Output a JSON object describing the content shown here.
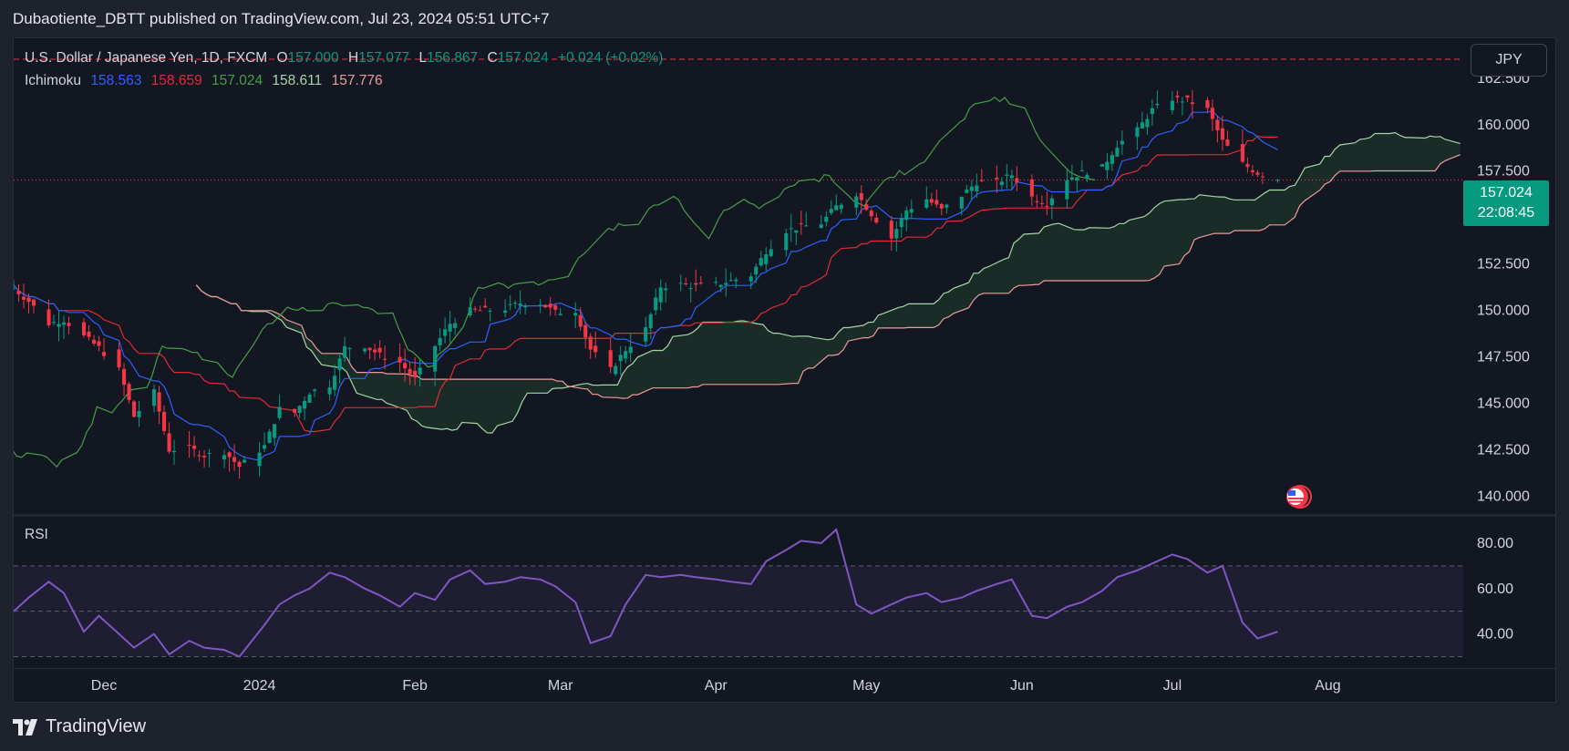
{
  "header": {
    "title": "Dubaotiente_DBTT published on TradingView.com, Jul 23, 2024 05:51 UTC+7"
  },
  "legend": {
    "symbol": "U.S. Dollar / Japanese Yen, 1D, FXCM",
    "o_label": "O",
    "o_value": "157.000",
    "h_label": "H",
    "h_value": "157.077",
    "l_label": "L",
    "l_value": "156.867",
    "c_label": "C",
    "c_value": "157.024",
    "change": "+0.024 (+0.02%)",
    "indicator": "Ichimoku",
    "ichimoku_values": [
      "158.563",
      "158.659",
      "157.024",
      "158.611",
      "157.776"
    ]
  },
  "currency_button": "JPY",
  "price_badge": {
    "price": "157.024",
    "countdown": "22:08:45"
  },
  "rsi_label": "RSI",
  "footer": {
    "brand": "TradingView"
  },
  "colors": {
    "up": "#089981",
    "down": "#f23645",
    "tenkan": "#2962ff",
    "kijun": "#e02b36",
    "chikou": "#43a047",
    "spanA": "#a5d6a7",
    "spanB": "#ef9a9a",
    "rsi": "#7e57c2"
  },
  "chart_data": [
    {
      "type": "candlestick",
      "title": "U.S. Dollar / Japanese Yen, 1D, FXCM",
      "y_ticks": [
        140,
        142.5,
        145,
        147.5,
        150,
        152.5,
        155,
        157.5,
        160,
        162.5
      ],
      "y_tick_labels": [
        "140.000",
        "142.500",
        "145.000",
        "147.500",
        "150.000",
        "152.500",
        "155.000",
        "157.500",
        "160.000",
        "162.500"
      ],
      "ylim": [
        139,
        164.5
      ],
      "x_labels": [
        "Dec",
        "2024",
        "Feb",
        "Mar",
        "Apr",
        "May",
        "Jun",
        "Jul",
        "Aug"
      ],
      "xlim": [
        "2023-11-13",
        "2024-08-28"
      ],
      "x_label_dates": [
        "2023-12-01",
        "2024-01-01",
        "2024-02-01",
        "2024-03-01",
        "2024-04-01",
        "2024-05-01",
        "2024-06-01",
        "2024-07-01",
        "2024-08-01"
      ],
      "last_price": 157.024,
      "close_series": {
        "dates": [
          "2023-11-13",
          "2023-11-16",
          "2023-11-20",
          "2023-11-23",
          "2023-11-27",
          "2023-11-30",
          "2023-12-04",
          "2023-12-07",
          "2023-12-11",
          "2023-12-14",
          "2023-12-18",
          "2023-12-21",
          "2023-12-25",
          "2023-12-28",
          "2024-01-02",
          "2024-01-05",
          "2024-01-08",
          "2024-01-11",
          "2024-01-15",
          "2024-01-18",
          "2024-01-22",
          "2024-01-25",
          "2024-01-29",
          "2024-02-01",
          "2024-02-05",
          "2024-02-08",
          "2024-02-12",
          "2024-02-15",
          "2024-02-19",
          "2024-02-22",
          "2024-02-26",
          "2024-02-29",
          "2024-03-04",
          "2024-03-07",
          "2024-03-11",
          "2024-03-14",
          "2024-03-18",
          "2024-03-21",
          "2024-03-25",
          "2024-03-28",
          "2024-04-01",
          "2024-04-04",
          "2024-04-08",
          "2024-04-11",
          "2024-04-15",
          "2024-04-18",
          "2024-04-22",
          "2024-04-25",
          "2024-04-29",
          "2024-05-02",
          "2024-05-06",
          "2024-05-09",
          "2024-05-13",
          "2024-05-16",
          "2024-05-20",
          "2024-05-23",
          "2024-05-27",
          "2024-05-30",
          "2024-06-03",
          "2024-06-06",
          "2024-06-10",
          "2024-06-13",
          "2024-06-17",
          "2024-06-20",
          "2024-06-24",
          "2024-06-27",
          "2024-07-01",
          "2024-07-04",
          "2024-07-08",
          "2024-07-11",
          "2024-07-15",
          "2024-07-18",
          "2024-07-22"
        ],
        "values": [
          151.2,
          150.5,
          149.3,
          149.5,
          148.6,
          148.0,
          146.8,
          144.3,
          145.6,
          142.5,
          142.6,
          142.2,
          142.4,
          141.6,
          142.7,
          144.7,
          144.5,
          145.6,
          146.0,
          148.0,
          148.1,
          147.6,
          147.2,
          146.3,
          148.1,
          149.3,
          150.0,
          150.0,
          150.1,
          150.4,
          150.4,
          149.9,
          150.0,
          147.9,
          146.8,
          147.9,
          149.0,
          151.3,
          151.4,
          151.3,
          151.4,
          151.6,
          151.9,
          153.2,
          154.3,
          154.5,
          154.7,
          155.6,
          156.3,
          155.2,
          153.9,
          155.4,
          156.0,
          155.4,
          156.2,
          156.9,
          156.9,
          157.3,
          156.1,
          155.8,
          157.1,
          157.4,
          157.7,
          158.9,
          159.7,
          160.8,
          161.4,
          161.3,
          160.8,
          159.1,
          157.9,
          157.4,
          157.024
        ]
      }
    },
    {
      "type": "line",
      "title": "RSI",
      "y_ticks": [
        40,
        60,
        80
      ],
      "y_tick_labels": [
        "40.00",
        "60.00",
        "80.00"
      ],
      "ylim": [
        25,
        92
      ],
      "bands": [
        30,
        50,
        70
      ],
      "series": [
        {
          "dates": [
            "2023-11-13",
            "2023-11-16",
            "2023-11-20",
            "2023-11-23",
            "2023-11-27",
            "2023-11-30",
            "2023-12-04",
            "2023-12-07",
            "2023-12-11",
            "2023-12-14",
            "2023-12-18",
            "2023-12-21",
            "2023-12-25",
            "2023-12-28",
            "2024-01-02",
            "2024-01-05",
            "2024-01-08",
            "2024-01-11",
            "2024-01-15",
            "2024-01-18",
            "2024-01-22",
            "2024-01-25",
            "2024-01-29",
            "2024-02-01",
            "2024-02-05",
            "2024-02-08",
            "2024-02-12",
            "2024-02-15",
            "2024-02-19",
            "2024-02-22",
            "2024-02-26",
            "2024-02-29",
            "2024-03-04",
            "2024-03-07",
            "2024-03-11",
            "2024-03-14",
            "2024-03-18",
            "2024-03-21",
            "2024-03-25",
            "2024-03-28",
            "2024-04-01",
            "2024-04-04",
            "2024-04-08",
            "2024-04-11",
            "2024-04-15",
            "2024-04-18",
            "2024-04-22",
            "2024-04-25",
            "2024-04-29",
            "2024-05-02",
            "2024-05-06",
            "2024-05-09",
            "2024-05-13",
            "2024-05-16",
            "2024-05-20",
            "2024-05-23",
            "2024-05-27",
            "2024-05-30",
            "2024-06-03",
            "2024-06-06",
            "2024-06-10",
            "2024-06-13",
            "2024-06-17",
            "2024-06-20",
            "2024-06-24",
            "2024-06-27",
            "2024-07-01",
            "2024-07-04",
            "2024-07-08",
            "2024-07-11",
            "2024-07-15",
            "2024-07-18",
            "2024-07-22"
          ],
          "values": [
            50,
            56,
            63,
            58,
            41,
            48,
            40,
            34,
            40,
            31,
            37,
            34,
            33,
            30,
            44,
            53,
            57,
            60,
            67,
            65,
            60,
            57,
            52,
            58,
            55,
            64,
            68,
            62,
            63,
            65,
            64,
            61,
            54,
            36,
            39,
            53,
            66,
            65,
            66,
            65,
            64,
            63,
            62,
            72,
            77,
            81,
            80,
            86,
            53,
            49,
            53,
            56,
            58,
            54,
            56,
            59,
            62,
            64,
            48,
            47,
            52,
            54,
            59,
            65,
            68,
            71,
            75,
            73,
            67,
            70,
            45,
            38,
            41
          ]
        }
      ]
    }
  ]
}
